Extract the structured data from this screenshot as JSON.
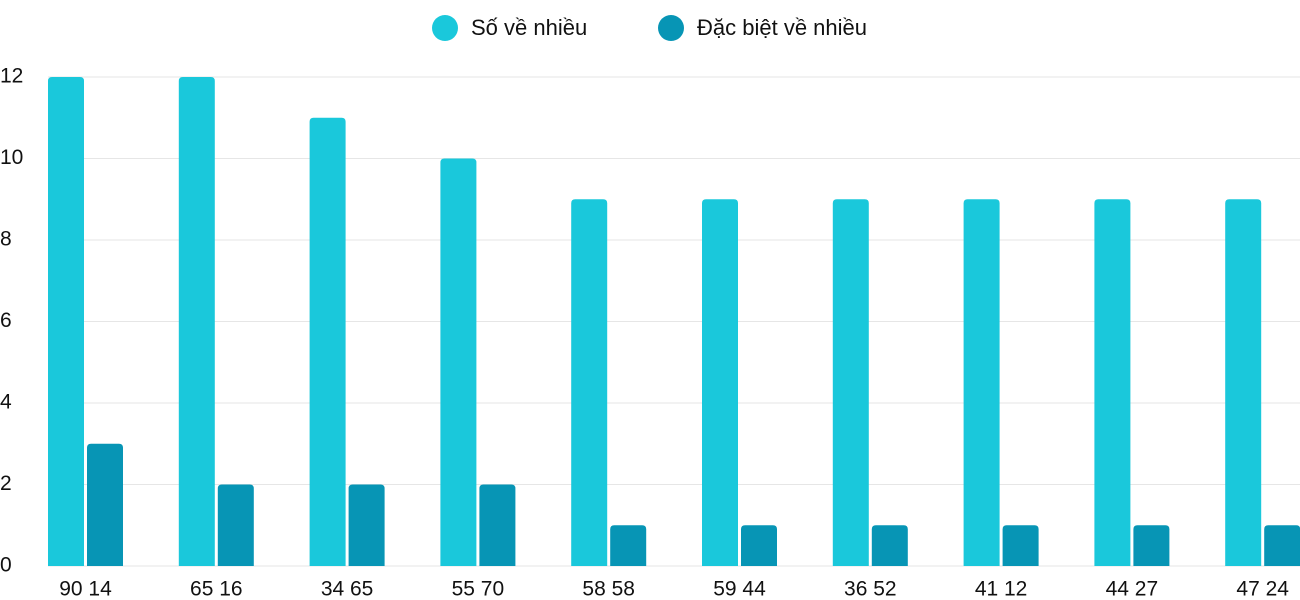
{
  "chart_data": {
    "type": "bar",
    "categories": [
      "90 14",
      "65 16",
      "34 65",
      "55 70",
      "58 58",
      "59 44",
      "36 52",
      "41 12",
      "44 27",
      "47 24"
    ],
    "series": [
      {
        "name": "Số về nhiều",
        "color": "#1ac8db",
        "values": [
          12,
          12,
          11,
          10,
          9,
          9,
          9,
          9,
          9,
          9
        ]
      },
      {
        "name": "Đặc biệt về nhiều",
        "color": "#0795b5",
        "values": [
          3,
          2,
          2,
          2,
          1,
          1,
          1,
          1,
          1,
          1
        ]
      }
    ],
    "ylim": [
      0,
      12
    ],
    "yticks": [
      0,
      2,
      4,
      6,
      8,
      10,
      12
    ],
    "grid": true,
    "legend": "top"
  }
}
